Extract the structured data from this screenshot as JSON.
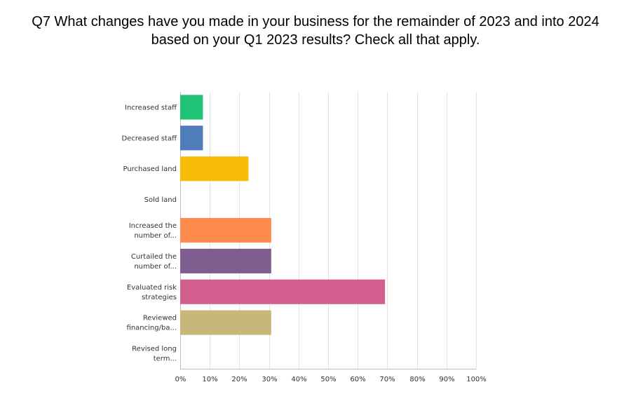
{
  "title_lines": [
    "Q7 What changes have you made in your business for the remainder of 2023 and into 2024",
    "based on your Q1 2023 results? Check all that apply."
  ],
  "chart_data": {
    "type": "bar",
    "orientation": "horizontal",
    "title": "Q7 What changes have you made in your business for the remainder of 2023 and into 2024 based on your Q1 2023 results? Check all that apply.",
    "categories": [
      [
        "Increased staff"
      ],
      [
        "Decreased staff"
      ],
      [
        "Purchased land"
      ],
      [
        "Sold land"
      ],
      [
        "Increased the",
        "number of..."
      ],
      [
        "Curtailed the",
        "number of..."
      ],
      [
        "Evaluated risk",
        "strategies"
      ],
      [
        "Reviewed",
        "financing/ba..."
      ],
      [
        "Revised long",
        "term..."
      ]
    ],
    "values": [
      7.69,
      7.69,
      23.08,
      0,
      30.77,
      30.77,
      69.23,
      30.77,
      0
    ],
    "colors": [
      "#20c375",
      "#4f7db9",
      "#f7bd08",
      "#c0c0c0",
      "#ff8c4d",
      "#7d5e8f",
      "#d35f8f",
      "#c7b879",
      "#c0c0c0"
    ],
    "xlim": [
      0,
      100
    ],
    "xticks": [
      "0%",
      "10%",
      "20%",
      "30%",
      "40%",
      "50%",
      "60%",
      "70%",
      "80%",
      "90%",
      "100%"
    ],
    "grid": true,
    "legend": "none"
  }
}
